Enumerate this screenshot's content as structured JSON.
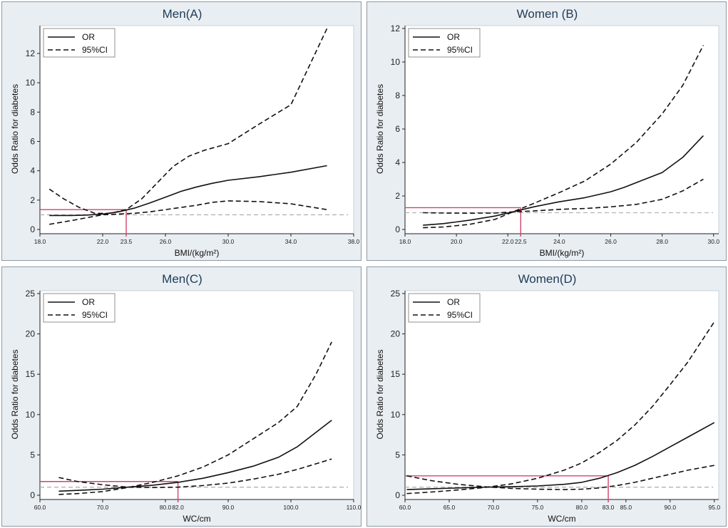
{
  "colors": {
    "background": "#e9eef2",
    "plot_area": "#ffffff",
    "title": "#1e3b57",
    "cutoff": "#d1436b",
    "reference": "#b3b3b3",
    "series": "#111111"
  },
  "chart_data": [
    {
      "id": "A",
      "type": "line",
      "title": "Men(A)",
      "xlabel": "BMI/(kg/m²)",
      "ylabel": "Odds Ratio for diabetes",
      "xlim": [
        18,
        38
      ],
      "ylim": [
        0,
        13.7
      ],
      "xticks": [
        18,
        22,
        23.5,
        26,
        30,
        34,
        38
      ],
      "xtick_labels": [
        "18.0",
        "22.0",
        "23.5",
        "26.0",
        "30.0",
        "34.0",
        "38.0"
      ],
      "yticks": [
        0,
        2,
        4,
        6,
        8,
        10,
        12
      ],
      "ytick_labels": [
        "0",
        "2",
        "4",
        "6",
        "8",
        "10",
        "12"
      ],
      "legend": {
        "position": "top-left",
        "entries": [
          "OR",
          "95%CI"
        ]
      },
      "reference_line": {
        "y": 1
      },
      "cutoff": {
        "x": 23.5,
        "y": 1.35
      },
      "series": [
        {
          "name": "OR",
          "style": "solid",
          "x": [
            18.6,
            20,
            21,
            22,
            23,
            24,
            25,
            26,
            27,
            28,
            29,
            30,
            32,
            34,
            36.3
          ],
          "y": [
            0.95,
            0.95,
            0.98,
            1.05,
            1.2,
            1.45,
            1.8,
            2.2,
            2.6,
            2.9,
            3.15,
            3.35,
            3.6,
            3.9,
            4.35
          ]
        },
        {
          "name": "95%CI upper",
          "style": "dashed",
          "x": [
            18.6,
            19.5,
            20.5,
            21.5,
            22.5,
            23.5,
            24.5,
            25.5,
            26.5,
            27.5,
            28.5,
            30,
            32,
            34,
            36.3
          ],
          "y": [
            2.75,
            2.1,
            1.5,
            1.1,
            1.1,
            1.35,
            2.1,
            3.2,
            4.3,
            5,
            5.4,
            5.85,
            7.2,
            8.5,
            13.7
          ]
        },
        {
          "name": "95%CI lower",
          "style": "dashed",
          "x": [
            18.6,
            20,
            21,
            22,
            23,
            24,
            25,
            26,
            27,
            28,
            29,
            30,
            32,
            34,
            36.3
          ],
          "y": [
            0.35,
            0.6,
            0.8,
            1,
            1.05,
            1.1,
            1.2,
            1.35,
            1.5,
            1.65,
            1.85,
            1.95,
            1.9,
            1.75,
            1.35
          ]
        }
      ]
    },
    {
      "id": "B",
      "type": "line",
      "title": "Women (B)",
      "xlabel": "BMI/(kg/m²)",
      "ylabel": "Odds Ratio for diabetes",
      "xlim": [
        18,
        30.2
      ],
      "ylim": [
        0,
        12
      ],
      "xticks": [
        18,
        20,
        22,
        22.5,
        24,
        26,
        28,
        30
      ],
      "xtick_labels": [
        "18.0",
        "20.0",
        "22.0",
        "22.5",
        "24.0",
        "26.0",
        "28.0",
        "30.0"
      ],
      "yticks": [
        0,
        2,
        4,
        6,
        8,
        10,
        12
      ],
      "ytick_labels": [
        "0",
        "2",
        "4",
        "6",
        "8",
        "10",
        "12"
      ],
      "legend": {
        "position": "top-left",
        "entries": [
          "OR",
          "95%CI"
        ]
      },
      "reference_line": {
        "y": 1
      },
      "cutoff": {
        "x": 22.5,
        "y": 1.3
      },
      "series": [
        {
          "name": "OR",
          "style": "solid",
          "x": [
            18.7,
            19.5,
            20.5,
            21.5,
            22.2,
            23,
            24,
            25,
            26,
            26.5,
            27,
            28,
            28.8,
            29.6
          ],
          "y": [
            0.25,
            0.35,
            0.55,
            0.8,
            1.05,
            1.35,
            1.65,
            1.9,
            2.25,
            2.5,
            2.8,
            3.4,
            4.3,
            5.6
          ]
        },
        {
          "name": "95%CI upper",
          "style": "dashed",
          "x": [
            18.7,
            19.5,
            20.5,
            21.5,
            22.2,
            23,
            24,
            25,
            26,
            27,
            28,
            28.8,
            29.6
          ],
          "y": [
            0.1,
            0.15,
            0.3,
            0.6,
            1.05,
            1.55,
            2.2,
            2.9,
            3.9,
            5.2,
            6.9,
            8.6,
            11
          ]
        },
        {
          "name": "95%CI lower",
          "style": "dashed",
          "x": [
            18.7,
            19.5,
            20.5,
            21.5,
            22.2,
            23,
            24,
            25,
            26,
            27,
            28,
            28.8,
            29.6
          ],
          "y": [
            1,
            0.98,
            0.97,
            0.98,
            1.05,
            1.1,
            1.2,
            1.25,
            1.35,
            1.5,
            1.8,
            2.3,
            3
          ]
        }
      ]
    },
    {
      "id": "C",
      "type": "line",
      "title": "Men(C)",
      "xlabel": "WC/cm",
      "ylabel": "Odds Ratio for diabetes",
      "xlim": [
        60,
        110
      ],
      "ylim": [
        0,
        25
      ],
      "xticks": [
        60,
        70,
        80,
        82,
        90,
        100,
        110
      ],
      "xtick_labels": [
        "60.0",
        "70.0",
        "80.0",
        "82.0",
        "90.0",
        "100.0",
        "110.0"
      ],
      "yticks": [
        0,
        5,
        10,
        15,
        20,
        25
      ],
      "ytick_labels": [
        "0",
        "5",
        "10",
        "15",
        "20",
        "25"
      ],
      "legend": {
        "position": "top-left",
        "entries": [
          "OR",
          "95%CI"
        ]
      },
      "reference_line": {
        "y": 1
      },
      "cutoff": {
        "x": 82,
        "y": 1.7
      },
      "series": [
        {
          "name": "OR",
          "style": "solid",
          "x": [
            63,
            66,
            70,
            74,
            78,
            82,
            86,
            90,
            94,
            98,
            101,
            104,
            106.5
          ],
          "y": [
            0.5,
            0.6,
            0.75,
            1,
            1.25,
            1.6,
            2.1,
            2.8,
            3.6,
            4.7,
            6,
            7.8,
            9.3
          ]
        },
        {
          "name": "95%CI upper",
          "style": "dashed",
          "x": [
            63,
            66,
            70,
            74,
            78,
            82,
            86,
            90,
            94,
            98,
            101,
            104,
            106.5
          ],
          "y": [
            0.1,
            0.2,
            0.45,
            0.95,
            1.6,
            2.4,
            3.5,
            5,
            7,
            9,
            11,
            15,
            19
          ]
        },
        {
          "name": "95%CI lower",
          "style": "dashed",
          "x": [
            63,
            66,
            70,
            74,
            78,
            82,
            86,
            90,
            94,
            98,
            101,
            104,
            106.5
          ],
          "y": [
            2.2,
            1.7,
            1.3,
            1,
            0.95,
            1,
            1.2,
            1.5,
            2,
            2.6,
            3.2,
            3.9,
            4.5
          ]
        }
      ]
    },
    {
      "id": "D",
      "type": "line",
      "title": "Women(D)",
      "xlabel": "WC/cm",
      "ylabel": "Odds Ratio for diabetes",
      "xlim": [
        60,
        95.5
      ],
      "ylim": [
        0,
        25
      ],
      "xticks": [
        60,
        65,
        70,
        75,
        80,
        83,
        85,
        90,
        95
      ],
      "xtick_labels": [
        "60.0",
        "65.0",
        "70.0",
        "75.0",
        "80.0",
        "83.0",
        "85.0",
        "90.0",
        "95.0"
      ],
      "yticks": [
        0,
        5,
        10,
        15,
        20,
        25
      ],
      "ytick_labels": [
        "0",
        "5",
        "10",
        "15",
        "20",
        "25"
      ],
      "legend": {
        "position": "top-left",
        "entries": [
          "OR",
          "95%CI"
        ]
      },
      "reference_line": {
        "y": 1
      },
      "cutoff": {
        "x": 83,
        "y": 2.4
      },
      "series": [
        {
          "name": "OR",
          "style": "solid",
          "x": [
            60.2,
            63,
            66,
            69,
            72,
            75,
            78,
            80,
            82,
            84,
            86,
            88,
            90,
            92,
            95
          ],
          "y": [
            0.7,
            0.8,
            0.9,
            1,
            1.05,
            1.15,
            1.35,
            1.6,
            2.1,
            2.8,
            3.7,
            4.8,
            6,
            7.2,
            9
          ]
        },
        {
          "name": "95%CI upper",
          "style": "dashed",
          "x": [
            60.2,
            63,
            66,
            69,
            72,
            75,
            78,
            80,
            82,
            84,
            86,
            88,
            90,
            92,
            95
          ],
          "y": [
            0.2,
            0.4,
            0.65,
            0.95,
            1.4,
            2.1,
            3.1,
            4,
            5.3,
            6.8,
            8.7,
            11,
            13.7,
            16.5,
            21.5
          ]
        },
        {
          "name": "95%CI lower",
          "style": "dashed",
          "x": [
            60.2,
            63,
            66,
            69,
            72,
            75,
            78,
            80,
            82,
            84,
            86,
            88,
            90,
            92,
            95
          ],
          "y": [
            2.4,
            1.8,
            1.35,
            1.05,
            0.85,
            0.75,
            0.7,
            0.75,
            0.9,
            1.2,
            1.6,
            2.1,
            2.6,
            3.1,
            3.7
          ]
        }
      ]
    }
  ]
}
